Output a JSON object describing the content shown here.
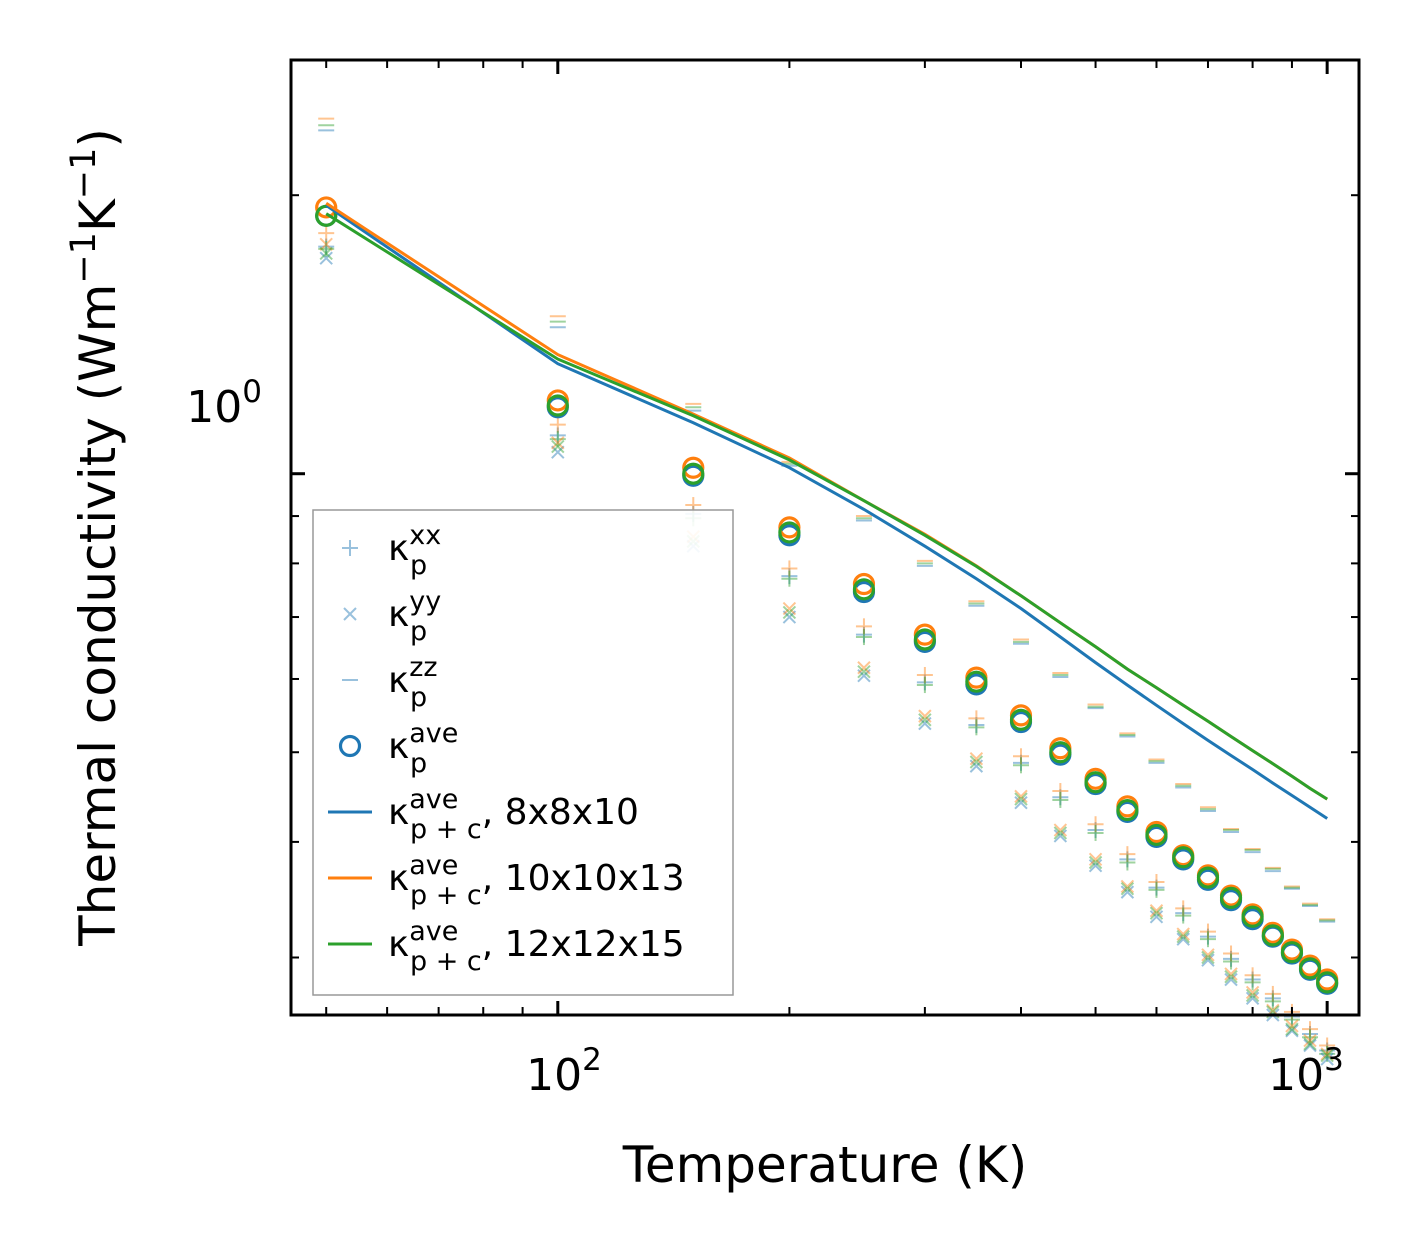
{
  "chart_data": {
    "type": "scatter",
    "xscale": "log",
    "yscale": "log",
    "xlim": [
      45,
      1100
    ],
    "ylim": [
      0.26,
      2.8
    ],
    "xlabel": "Temperature (K)",
    "ylabel": "Thermal conductivity (Wm",
    "ylabel_unit_tail": ")",
    "ylabel_exp_m": "−1",
    "ylabel_unit_k": "K",
    "ylabel_exp_k": "−1",
    "x_ticks": [
      {
        "value": 100,
        "base": "10",
        "exp": "2"
      },
      {
        "value": 1000,
        "base": "10",
        "exp": "3"
      }
    ],
    "y_ticks": [
      {
        "value": 1.0,
        "base": "10",
        "exp": "0"
      }
    ],
    "temperatures": [
      50,
      100,
      150,
      200,
      250,
      300,
      350,
      400,
      450,
      500,
      550,
      600,
      650,
      700,
      750,
      800,
      850,
      900,
      950,
      1000
    ],
    "grid": false,
    "legend_position": "lower-left",
    "colors": {
      "blue": "#1f77b4",
      "orange": "#ff7f0e",
      "green": "#2ca02c"
    },
    "series": [
      {
        "name": "κp^xx",
        "marker": "plus",
        "kind": "markers",
        "alpha": 0.45,
        "label_base": "κ",
        "label_sub": "p",
        "label_sup": "xx",
        "label_suffix": "",
        "values": {
          "blue": [
            1.76,
            1.1,
            0.905,
            0.775,
            0.67,
            0.595,
            0.535,
            0.487,
            0.447,
            0.412,
            0.383,
            0.357,
            0.335,
            0.316,
            0.299,
            0.284,
            0.271,
            0.259,
            0.248,
            0.238
          ],
          "orange": [
            1.82,
            1.13,
            0.925,
            0.79,
            0.684,
            0.606,
            0.544,
            0.495,
            0.454,
            0.418,
            0.388,
            0.362,
            0.339,
            0.32,
            0.303,
            0.287,
            0.274,
            0.262,
            0.251,
            0.241
          ],
          "green": [
            1.75,
            1.09,
            0.895,
            0.77,
            0.666,
            0.591,
            0.532,
            0.484,
            0.444,
            0.409,
            0.38,
            0.355,
            0.333,
            0.314,
            0.297,
            0.282,
            0.269,
            0.257,
            0.246,
            0.236
          ]
        }
      },
      {
        "name": "κp^yy",
        "marker": "x",
        "kind": "markers",
        "alpha": 0.45,
        "label_base": "κ",
        "label_sub": "p",
        "label_sup": "yy",
        "label_suffix": "",
        "values": {
          "blue": [
            1.71,
            1.055,
            0.835,
            0.7,
            0.605,
            0.537,
            0.483,
            0.441,
            0.406,
            0.377,
            0.353,
            0.332,
            0.314,
            0.298,
            0.284,
            0.271,
            0.26,
            0.25,
            0.241,
            0.233
          ],
          "orange": [
            1.77,
            1.08,
            0.855,
            0.715,
            0.617,
            0.547,
            0.492,
            0.448,
            0.412,
            0.383,
            0.358,
            0.337,
            0.318,
            0.302,
            0.288,
            0.275,
            0.263,
            0.253,
            0.244,
            0.236
          ],
          "green": [
            1.73,
            1.07,
            0.845,
            0.708,
            0.611,
            0.542,
            0.488,
            0.445,
            0.409,
            0.38,
            0.356,
            0.335,
            0.316,
            0.3,
            0.286,
            0.273,
            0.262,
            0.251,
            0.242,
            0.235
          ]
        }
      },
      {
        "name": "κp^zz",
        "marker": "hline",
        "kind": "markers",
        "alpha": 0.45,
        "label_base": "κ",
        "label_sub": "p",
        "label_sup": "zz",
        "label_suffix": "",
        "values": {
          "blue": [
            2.35,
            1.44,
            1.17,
            1.02,
            0.89,
            0.795,
            0.72,
            0.655,
            0.603,
            0.558,
            0.52,
            0.487,
            0.458,
            0.432,
            0.41,
            0.39,
            0.372,
            0.356,
            0.341,
            0.328
          ],
          "orange": [
            2.42,
            1.48,
            1.19,
            1.03,
            0.9,
            0.805,
            0.728,
            0.662,
            0.609,
            0.563,
            0.524,
            0.491,
            0.462,
            0.436,
            0.413,
            0.393,
            0.375,
            0.358,
            0.343,
            0.33
          ],
          "green": [
            2.38,
            1.46,
            1.18,
            1.025,
            0.895,
            0.8,
            0.724,
            0.658,
            0.606,
            0.56,
            0.522,
            0.489,
            0.46,
            0.434,
            0.412,
            0.392,
            0.374,
            0.357,
            0.342,
            0.329
          ]
        }
      },
      {
        "name": "κp^ave",
        "marker": "circle",
        "kind": "markers",
        "alpha": 1,
        "label_base": "κ",
        "label_sub": "p",
        "label_sup": "ave",
        "label_suffix": "",
        "values": {
          "blue": [
            1.9,
            1.18,
            0.995,
            0.858,
            0.745,
            0.658,
            0.592,
            0.539,
            0.497,
            0.462,
            0.431,
            0.405,
            0.383,
            0.364,
            0.346,
            0.33,
            0.316,
            0.303,
            0.291,
            0.281
          ],
          "orange": [
            1.94,
            1.2,
            1.015,
            0.875,
            0.76,
            0.67,
            0.602,
            0.548,
            0.505,
            0.468,
            0.437,
            0.41,
            0.387,
            0.368,
            0.35,
            0.334,
            0.319,
            0.306,
            0.294,
            0.284
          ],
          "green": [
            1.9,
            1.185,
            1.0,
            0.864,
            0.75,
            0.662,
            0.596,
            0.542,
            0.5,
            0.464,
            0.433,
            0.407,
            0.385,
            0.366,
            0.348,
            0.332,
            0.317,
            0.304,
            0.292,
            0.282
          ]
        }
      }
    ],
    "lines": [
      {
        "name": "κp+c^ave, 8x8x10",
        "color_key": "blue",
        "label_base": "κ",
        "label_sub": "p + c",
        "label_sup": "ave",
        "label_suffix": ", 8x8x10",
        "values": [
          1.95,
          1.315,
          1.135,
          1.015,
          0.915,
          0.835,
          0.77,
          0.715,
          0.666,
          0.625,
          0.591,
          0.562,
          0.537,
          0.515,
          0.496,
          0.479,
          0.463,
          0.449,
          0.436,
          0.424
        ]
      },
      {
        "name": "κp+c^ave, 10x10x13",
        "color_key": "orange",
        "label_base": "κ",
        "label_sub": "p + c",
        "label_sup": "ave",
        "label_suffix": ", 10x10x13",
        "values": [
          1.96,
          1.345,
          1.16,
          1.04,
          0.935,
          0.86,
          0.795,
          0.738,
          0.69,
          0.65,
          0.615,
          0.587,
          0.562,
          0.54,
          0.52,
          0.502,
          0.486,
          0.471,
          0.457,
          0.445
        ]
      },
      {
        "name": "κp+c^ave, 12x12x15",
        "color_key": "green",
        "label_base": "κ",
        "label_sub": "p + c",
        "label_sup": "ave",
        "label_suffix": ", 12x12x15",
        "values": [
          1.91,
          1.33,
          1.155,
          1.035,
          0.935,
          0.858,
          0.794,
          0.738,
          0.69,
          0.65,
          0.615,
          0.587,
          0.562,
          0.54,
          0.52,
          0.502,
          0.486,
          0.471,
          0.457,
          0.445
        ]
      }
    ]
  }
}
